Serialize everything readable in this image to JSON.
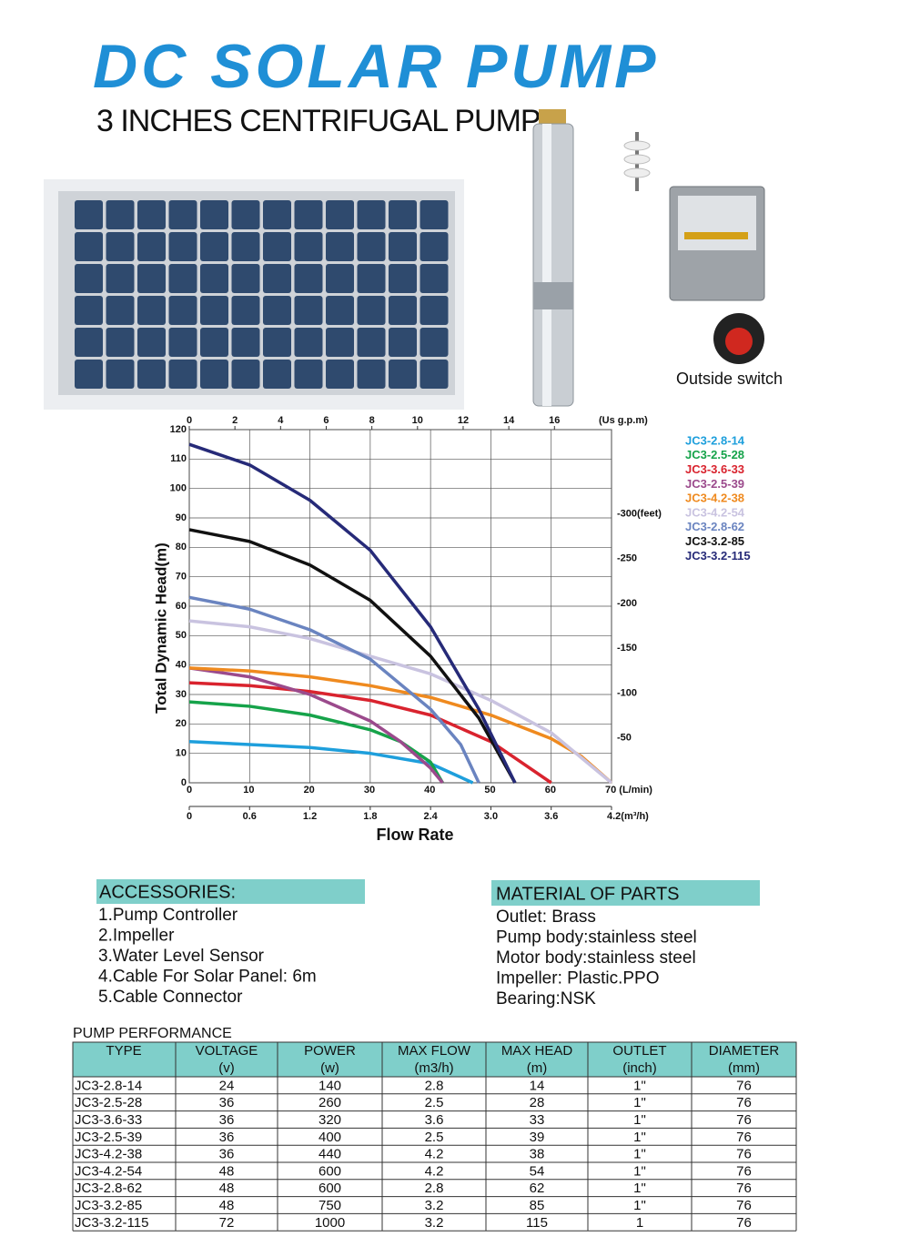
{
  "header": {
    "title": "DC SOLAR PUMP",
    "subtitle": "3 INCHES CENTRIFUGAL  PUMP"
  },
  "switch_label": "Outside switch",
  "chart_data": {
    "type": "line",
    "y_label": "Total Dynamic Head(m)",
    "x_label": "Flow Rate",
    "xlim": [
      0,
      70
    ],
    "ylim": [
      0,
      120
    ],
    "xticks": [
      0,
      10,
      20,
      30,
      40,
      50,
      60,
      {
        "value": 70,
        "label": "70 (L/min)"
      }
    ],
    "yticks": [
      0,
      10,
      20,
      30,
      40,
      50,
      60,
      70,
      80,
      90,
      100,
      110,
      120
    ],
    "x2lim": [
      0,
      18.5
    ],
    "x2ticks": [
      0,
      2,
      4,
      6,
      8,
      10,
      12,
      14,
      16
    ],
    "x2_unit": "(Us g.p.m)",
    "x3lim": [
      0,
      4.2
    ],
    "x3ticks": [
      0,
      0.6,
      1.2,
      1.8,
      2.4,
      {
        "value": 3,
        "label": "3.0"
      },
      3.6,
      {
        "value": 4.2,
        "label": "4.2(m³/h)"
      }
    ],
    "y2lim": [
      0,
      394
    ],
    "y2ticks": [
      {
        "value": 50,
        "label": "-50"
      },
      {
        "value": 100,
        "label": "-100"
      },
      {
        "value": 150,
        "label": "-150"
      },
      {
        "value": 200,
        "label": "-200"
      },
      {
        "value": 250,
        "label": "-250"
      },
      {
        "value": 300,
        "label": "-300(feet)"
      }
    ],
    "grid": true,
    "series": [
      {
        "name": "JC3-2.8-14",
        "color": "#1e9fdc",
        "x": [
          0,
          10,
          20,
          30,
          40,
          47
        ],
        "values": [
          14,
          13,
          12,
          10,
          6.5,
          0
        ]
      },
      {
        "name": "JC3-2.5-28",
        "color": "#16a34a",
        "x": [
          0,
          10,
          20,
          30,
          35,
          40,
          42
        ],
        "values": [
          27.5,
          26,
          23,
          18,
          14,
          7,
          0
        ]
      },
      {
        "name": "JC3-3.6-33",
        "color": "#d9232e",
        "x": [
          0,
          10,
          20,
          30,
          40,
          50,
          55,
          60
        ],
        "values": [
          34,
          33,
          31,
          28,
          23,
          14,
          7,
          0
        ]
      },
      {
        "name": "JC3-2.5-39",
        "color": "#9b4a8c",
        "x": [
          0,
          10,
          20,
          30,
          35,
          40,
          42
        ],
        "values": [
          39,
          36,
          30,
          21,
          14,
          5,
          0
        ]
      },
      {
        "name": "JC3-4.2-38",
        "color": "#ef8a1f",
        "x": [
          0,
          10,
          20,
          30,
          40,
          50,
          60,
          65,
          70
        ],
        "values": [
          39,
          38,
          36,
          33,
          29,
          23,
          15,
          9,
          0
        ]
      },
      {
        "name": "JC3-4.2-54",
        "color": "#c9c3e0",
        "x": [
          0,
          10,
          20,
          30,
          40,
          50,
          60,
          70
        ],
        "values": [
          55,
          53,
          49,
          43,
          37,
          28,
          17,
          0
        ]
      },
      {
        "name": "JC3-2.8-62",
        "color": "#6a84c0",
        "x": [
          0,
          10,
          20,
          30,
          40,
          45,
          48
        ],
        "values": [
          63,
          59,
          52,
          42,
          25,
          13,
          0
        ]
      },
      {
        "name": "JC3-3.2-85",
        "color": "#111111",
        "x": [
          0,
          10,
          20,
          30,
          40,
          48,
          54
        ],
        "values": [
          86,
          82,
          74,
          62,
          43,
          22,
          0
        ]
      },
      {
        "name": "JC3-3.2-115",
        "color": "#262a78",
        "x": [
          0,
          10,
          20,
          30,
          40,
          48,
          54
        ],
        "values": [
          115,
          108,
          96,
          79,
          53,
          25,
          0
        ]
      }
    ]
  },
  "accessories": {
    "title": "ACCESSORIES:",
    "items": [
      "1.Pump Controller",
      "2.Impeller",
      "3.Water Level Sensor",
      "4.Cable For Solar Panel: 6m",
      "5.Cable Connector"
    ]
  },
  "materials": {
    "title": "MATERIAL OF PARTS",
    "items": [
      "Outlet: Brass",
      "Pump body:stainless steel",
      "Motor body:stainless steel",
      "Impeller: Plastic.PPO",
      "Bearing:NSK"
    ]
  },
  "table": {
    "title": "PUMP PERFORMANCE",
    "header": [
      {
        "name": "TYPE"
      },
      {
        "name": "VOLTAGE",
        "unit": "(v)"
      },
      {
        "name": "POWER",
        "unit": "(w)"
      },
      {
        "name": "MAX FLOW",
        "unit": "(m3/h)"
      },
      {
        "name": "MAX HEAD",
        "unit": "(m)"
      },
      {
        "name": "OUTLET",
        "unit": "(inch)"
      },
      {
        "name": "DIAMETER",
        "unit": "(mm)"
      }
    ],
    "rows": [
      [
        "JC3-2.8-14",
        "24",
        "140",
        "2.8",
        "14",
        "1\"",
        "76"
      ],
      [
        "JC3-2.5-28",
        "36",
        "260",
        "2.5",
        "28",
        "1\"",
        "76"
      ],
      [
        "JC3-3.6-33",
        "36",
        "320",
        "3.6",
        "33",
        "1\"",
        "76"
      ],
      [
        "JC3-2.5-39",
        "36",
        "400",
        "2.5",
        "39",
        "1\"",
        "76"
      ],
      [
        "JC3-4.2-38",
        "36",
        "440",
        "4.2",
        "38",
        "1\"",
        "76"
      ],
      [
        "JC3-4.2-54",
        "48",
        "600",
        "4.2",
        "54",
        "1\"",
        "76"
      ],
      [
        "JC3-2.8-62",
        "48",
        "600",
        "2.8",
        "62",
        "1\"",
        "76"
      ],
      [
        "JC3-3.2-85",
        "48",
        "750",
        "3.2",
        "85",
        "1\"",
        "76"
      ],
      [
        "JC3-3.2-115",
        "72",
        "1000",
        "3.2",
        "115",
        "1",
        "76"
      ]
    ]
  }
}
